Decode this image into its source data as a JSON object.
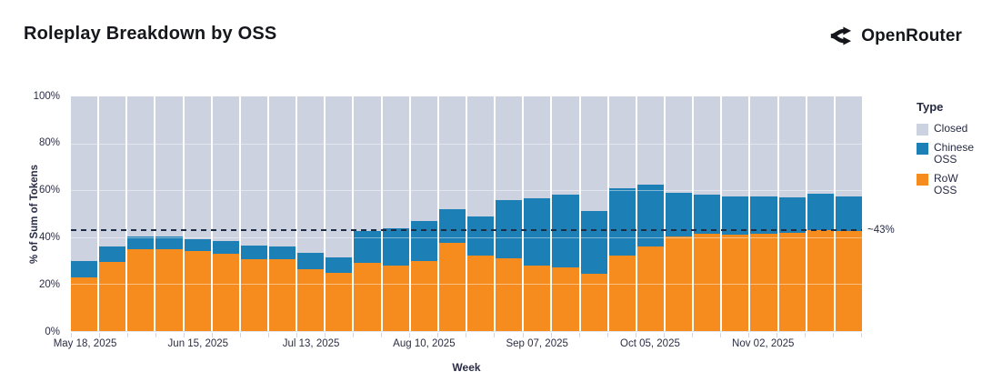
{
  "header": {
    "title": "Roleplay Breakdown by OSS",
    "brand": "OpenRouter"
  },
  "colors": {
    "closed": "#cdd2e0",
    "chinese_oss": "#1c7fb5",
    "row_oss": "#f68b1e",
    "threshold_line": "#1e2b45"
  },
  "chart_data": {
    "type": "bar",
    "stacked": true,
    "title": "Roleplay Breakdown by OSS",
    "xlabel": "Week",
    "ylabel": "% of Sum of Tokens",
    "ylim": [
      0,
      100
    ],
    "grid": "faint white horizontal lines at 20% steps",
    "legend_position": "right",
    "y_tick_labels": [
      "100%",
      "80%",
      "60%",
      "40%",
      "20%",
      "0%"
    ],
    "x_tick_labels": [
      {
        "index": 0,
        "label": "May 18, 2025"
      },
      {
        "index": 4,
        "label": "Jun 15, 2025"
      },
      {
        "index": 8,
        "label": "Jul 13, 2025"
      },
      {
        "index": 12,
        "label": "Aug 10, 2025"
      },
      {
        "index": 16,
        "label": "Sep 07, 2025"
      },
      {
        "index": 20,
        "label": "Oct 05, 2025"
      },
      {
        "index": 24,
        "label": "Nov 02, 2025"
      }
    ],
    "categories": [
      "May 18, 2025",
      "May 25, 2025",
      "Jun 01, 2025",
      "Jun 08, 2025",
      "Jun 15, 2025",
      "Jun 22, 2025",
      "Jun 29, 2025",
      "Jul 06, 2025",
      "Jul 13, 2025",
      "Jul 20, 2025",
      "Jul 27, 2025",
      "Aug 03, 2025",
      "Aug 10, 2025",
      "Aug 17, 2025",
      "Aug 24, 2025",
      "Aug 31, 2025",
      "Sep 07, 2025",
      "Sep 14, 2025",
      "Sep 21, 2025",
      "Sep 28, 2025",
      "Oct 05, 2025",
      "Oct 12, 2025",
      "Oct 19, 2025",
      "Oct 26, 2025",
      "Nov 02, 2025",
      "Nov 09, 2025",
      "Nov 16, 2025",
      "Nov 23, 2025"
    ],
    "series": [
      {
        "name": "RoW OSS",
        "color": "#f68b1e",
        "values": [
          23,
          29.5,
          35,
          35,
          34,
          33,
          30.5,
          30.5,
          26.5,
          25,
          29,
          28,
          30,
          37.5,
          32,
          31,
          28,
          27,
          24.5,
          32,
          36,
          40.5,
          41.5,
          41,
          41.5,
          42,
          43,
          42.5
        ]
      },
      {
        "name": "Chinese OSS",
        "color": "#1c7fb5",
        "values": [
          7,
          6.5,
          5.5,
          5.5,
          5,
          5.5,
          6,
          5.5,
          7,
          6.5,
          13.5,
          16,
          17,
          14.5,
          17,
          25,
          28.5,
          31,
          26.5,
          29,
          26.5,
          18.5,
          16.5,
          16.5,
          16,
          15,
          15.5,
          15
        ]
      },
      {
        "name": "Closed",
        "color": "#cdd2e0",
        "values": [
          70,
          64,
          59.5,
          59.5,
          61,
          61.5,
          63.5,
          64,
          66.5,
          68.5,
          57.5,
          56,
          53,
          48,
          51,
          44,
          43.5,
          42,
          49,
          39,
          37.5,
          41,
          42,
          42.5,
          42.5,
          43,
          41.5,
          42.5
        ]
      }
    ],
    "annotation": {
      "label": "~43%",
      "value": 43
    },
    "legend": {
      "title": "Type",
      "items": [
        {
          "label": "Closed",
          "color": "#cdd2e0"
        },
        {
          "label": "Chinese OSS",
          "color": "#1c7fb5"
        },
        {
          "label": "RoW OSS",
          "color": "#f68b1e"
        }
      ]
    }
  }
}
